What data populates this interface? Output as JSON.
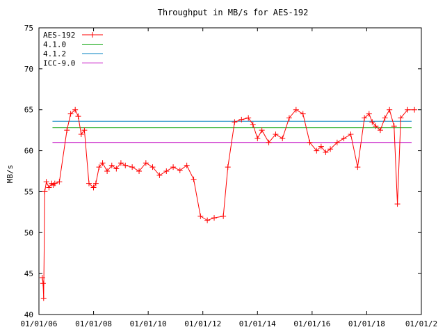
{
  "chart_data": {
    "type": "line",
    "title": "Throughput in MB/s for AES-192",
    "xlabel": "",
    "ylabel": "MB/s",
    "xlim": [
      "2006-01-01",
      "2020-01-01"
    ],
    "ylim": [
      40,
      75
    ],
    "x_ticks": [
      "01/01/06",
      "01/01/08",
      "01/01/10",
      "01/01/12",
      "01/01/14",
      "01/01/16",
      "01/01/18",
      "01/01/2"
    ],
    "y_ticks": [
      "40",
      "45",
      "50",
      "55",
      "60",
      "65",
      "70",
      "75"
    ],
    "grid": false,
    "legend_position": "top-left",
    "series": [
      {
        "name": "AES-192",
        "color": "#ff0000",
        "marker": "plus",
        "x": [
          "2006-02-15",
          "2006-02-25",
          "2006-03-05",
          "2006-03-20",
          "2006-04-10",
          "2006-05-15",
          "2006-06-20",
          "2006-07-10",
          "2006-08-01",
          "2006-10-01",
          "2007-01-10",
          "2007-03-01",
          "2007-05-01",
          "2007-06-10",
          "2007-07-20",
          "2007-09-01",
          "2007-11-01",
          "2008-01-01",
          "2008-02-01",
          "2008-03-15",
          "2008-05-01",
          "2008-07-01",
          "2008-09-01",
          "2008-11-01",
          "2009-01-01",
          "2009-03-01",
          "2009-06-01",
          "2009-09-01",
          "2009-12-01",
          "2010-03-01",
          "2010-06-01",
          "2010-09-01",
          "2010-12-01",
          "2011-03-01",
          "2011-06-01",
          "2011-09-01",
          "2011-12-01",
          "2012-03-01",
          "2012-06-01",
          "2012-10-01",
          "2012-12-01",
          "2013-03-01",
          "2013-06-01",
          "2013-09-01",
          "2013-11-01",
          "2014-01-01",
          "2014-03-01",
          "2014-06-01",
          "2014-09-01",
          "2014-12-01",
          "2015-03-01",
          "2015-06-01",
          "2015-09-01",
          "2015-12-01",
          "2016-03-01",
          "2016-05-01",
          "2016-07-01",
          "2016-09-01",
          "2016-12-01",
          "2017-03-01",
          "2017-06-01",
          "2017-09-01",
          "2017-12-01",
          "2018-02-01",
          "2018-03-15",
          "2018-05-01",
          "2018-07-01",
          "2018-09-01",
          "2018-11-01",
          "2019-01-01",
          "2019-02-15",
          "2019-04-01",
          "2019-07-01",
          "2019-10-01"
        ],
        "y": [
          44.5,
          43.8,
          42,
          55,
          56.2,
          55.5,
          56,
          55.8,
          56,
          56.2,
          62.5,
          64.5,
          65,
          64.2,
          62,
          62.5,
          56,
          55.5,
          56,
          58,
          58.5,
          57.5,
          58.2,
          57.8,
          58.5,
          58.2,
          58,
          57.5,
          58.5,
          58,
          57,
          57.5,
          58,
          57.6,
          58.2,
          56.5,
          52,
          51.5,
          51.8,
          52,
          58,
          63.5,
          63.8,
          64,
          63.2,
          61.5,
          62.5,
          61,
          62,
          61.5,
          64,
          65,
          64.5,
          61,
          60,
          60.5,
          59.8,
          60.2,
          61,
          61.5,
          62,
          58,
          64,
          64.5,
          63.5,
          63,
          62.5,
          64,
          65,
          63,
          53.5,
          64,
          65,
          65
        ]
      },
      {
        "name": "4.1.0",
        "color": "#00a000",
        "y": 62.8
      },
      {
        "name": "4.1.2",
        "color": "#0080c0",
        "y": 63.6
      },
      {
        "name": "ICC-9.0",
        "color": "#c000c0",
        "y": 61.0
      }
    ]
  }
}
